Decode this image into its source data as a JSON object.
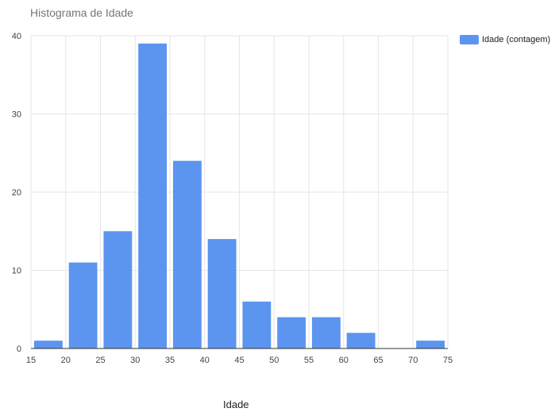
{
  "chart_data": {
    "type": "bar",
    "title": "Histograma de Idade",
    "xlabel": "Idade",
    "ylabel": "",
    "bin_start": [
      15,
      20,
      25,
      30,
      35,
      40,
      45,
      50,
      55,
      60,
      65,
      70
    ],
    "bin_width": 5,
    "series": [
      {
        "name": "Idade (contagem)",
        "values": [
          1,
          11,
          15,
          39,
          24,
          14,
          6,
          4,
          4,
          2,
          0,
          1
        ]
      }
    ],
    "xlim": [
      15,
      75
    ],
    "ylim": [
      0,
      40
    ],
    "x_ticks": [
      "15",
      "20",
      "25",
      "30",
      "35",
      "40",
      "45",
      "50",
      "55",
      "60",
      "65",
      "70",
      "75"
    ],
    "y_ticks": [
      "0",
      "10",
      "20",
      "30",
      "40"
    ],
    "grid": true,
    "legend_position": "right",
    "colors": {
      "bar": "#5b95f0",
      "grid": "#e6e6e6",
      "axis": "#333333"
    }
  }
}
